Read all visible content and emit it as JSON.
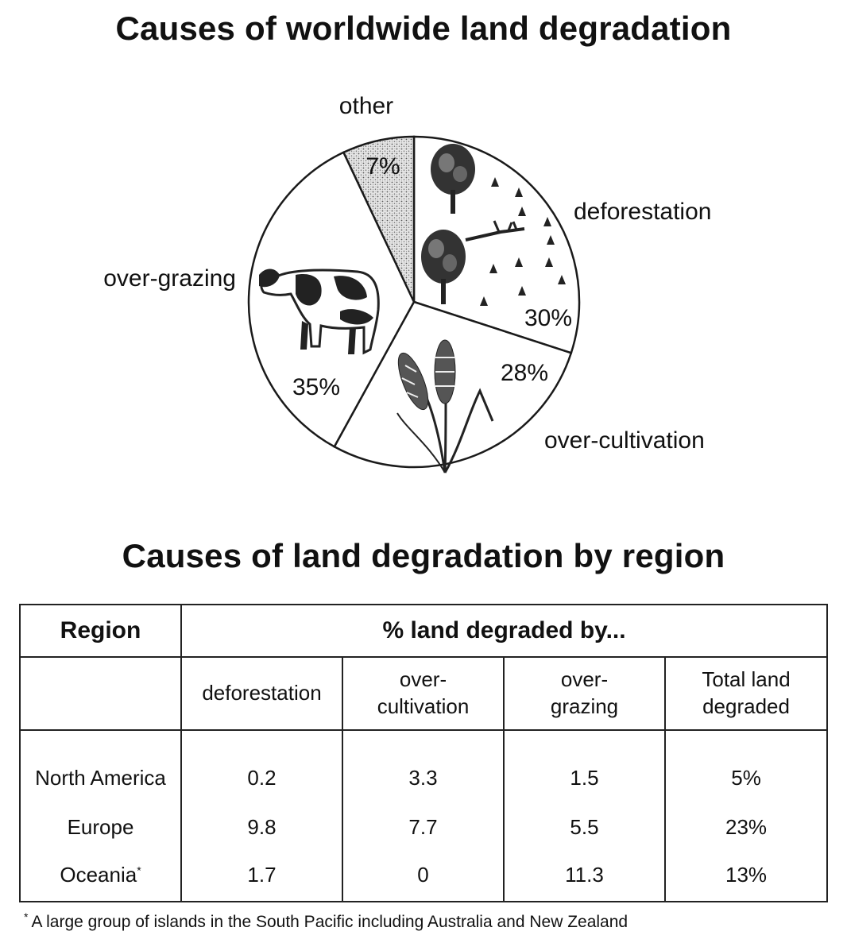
{
  "chart_data": [
    {
      "type": "pie",
      "title": "Causes of worldwide land degradation",
      "slices": [
        {
          "label": "deforestation",
          "value": 30,
          "value_label": "30%",
          "icon": "tree-stumps-icon"
        },
        {
          "label": "over-cultivation",
          "value": 28,
          "value_label": "28%",
          "icon": "wheat-icon"
        },
        {
          "label": "over-grazing",
          "value": 35,
          "value_label": "35%",
          "icon": "cow-icon"
        },
        {
          "label": "other",
          "value": 7,
          "value_label": "7%",
          "icon": "stipple-pattern"
        }
      ],
      "colors": {
        "fill": "#ffffff",
        "stroke": "#1a1a1a",
        "other_fill": "#c9c9c9"
      }
    },
    {
      "type": "table",
      "title": "Causes of land degradation by region",
      "header": {
        "region": "Region",
        "group": "% land degraded by...",
        "columns": [
          [
            "deforestation"
          ],
          [
            "over-",
            "cultivation"
          ],
          [
            "over-",
            "grazing"
          ],
          [
            "Total land",
            "degraded"
          ]
        ]
      },
      "rows": [
        {
          "region": "North America",
          "mark": "",
          "values": [
            "0.2",
            "3.3",
            "1.5",
            "5%"
          ]
        },
        {
          "region": "Europe",
          "mark": "",
          "values": [
            "9.8",
            "7.7",
            "5.5",
            "23%"
          ]
        },
        {
          "region": "Oceania",
          "mark": "*",
          "values": [
            "1.7",
            "0",
            "11.3",
            "13%"
          ]
        }
      ],
      "footnote": {
        "mark": "*",
        "text": "A large group of islands in the South Pacific including Australia and New Zealand"
      }
    }
  ]
}
